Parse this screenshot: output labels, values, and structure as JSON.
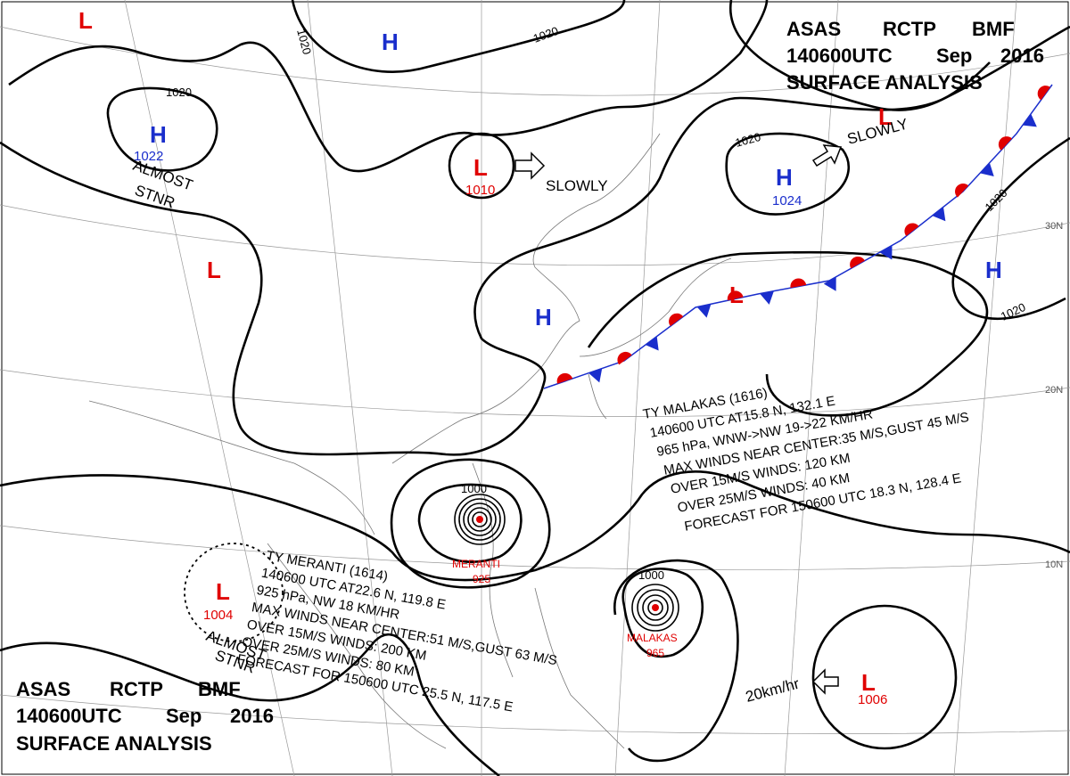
{
  "header": {
    "line1": [
      "ASAS",
      "RCTP",
      "BMF"
    ],
    "line2": [
      "140600UTC",
      "Sep",
      "2016"
    ],
    "line3": "SURFACE ANALYSIS"
  },
  "pressure_centers": [
    {
      "symbol": "L"
    },
    {
      "symbol": "H"
    },
    {
      "symbol": "H",
      "value": "1022"
    },
    {
      "symbol": "L",
      "value": "1010"
    },
    {
      "symbol": "H",
      "value": "1024"
    },
    {
      "symbol": "L"
    },
    {
      "symbol": "L"
    },
    {
      "symbol": "H"
    },
    {
      "symbol": "H"
    },
    {
      "symbol": "L"
    },
    {
      "symbol": "L",
      "value": "1004"
    },
    {
      "symbol": "L",
      "value": "1006"
    }
  ],
  "isobar_labels": [
    "1020",
    "1020",
    "1020",
    "1020",
    "1020",
    "1020",
    "1000",
    "1000"
  ],
  "annotations": [
    "SLOWLY",
    "SLOWLY",
    "ALMOST",
    "STNR",
    "ALMOST",
    "STNR",
    "20km/hr"
  ],
  "typhoons": [
    {
      "name": "MALAKAS",
      "pressure": "965",
      "lines": [
        "TY MALAKAS (1616)",
        "140600 UTC AT15.8 N, 132.1 E",
        "965 hPa, WNW->NW 19->22 KM/HR",
        "MAX WINDS NEAR CENTER:35 M/S,GUST 45 M/S",
        "OVER 15M/S WINDS: 120 KM",
        "OVER 25M/S WINDS: 40 KM",
        "FORECAST FOR 150600 UTC 18.3 N, 128.4 E"
      ]
    },
    {
      "name": "MERANTI",
      "pressure": "925",
      "lines": [
        "TY MERANTI (1614)",
        "140600 UTC AT22.6 N, 119.8 E",
        "925 hPa, NW 18 KM/HR",
        "MAX WINDS NEAR CENTER:51 M/S,GUST 63 M/S",
        "OVER 15M/S WINDS: 200 KM",
        "OVER 25M/S WINDS: 80 KM",
        "FORECAST FOR 150600 UTC 25.5 N, 117.5 E"
      ]
    }
  ],
  "latitude_labels": [
    "30N",
    "20N",
    "10N"
  ]
}
